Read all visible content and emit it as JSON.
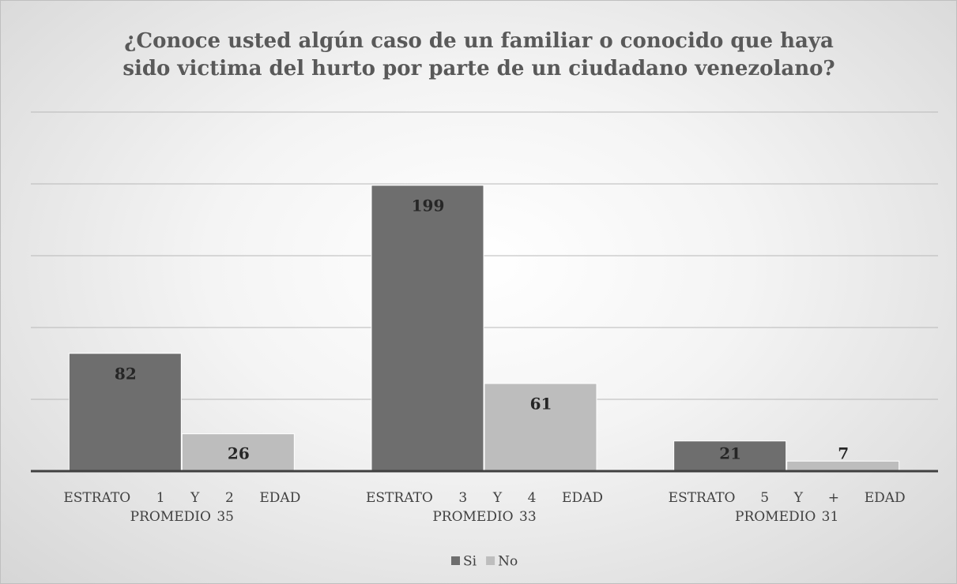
{
  "chart_data": {
    "type": "bar",
    "title": "¿Conoce usted algún caso de un familiar o conocido que haya sido victima del hurto por parte de un ciudadano venezolano?",
    "title_lines": [
      "¿Conoce usted algún caso de un familiar o conocido que haya",
      "sido victima del hurto por parte de un ciudadano venezolano?"
    ],
    "categories": [
      "ESTRATO 1 Y 2 EDAD PROMEDIO 35",
      "ESTRATO 3 Y 4 EDAD PROMEDIO 33",
      "ESTRATO 5 Y + EDAD PROMEDIO 31"
    ],
    "series": [
      {
        "name": "Si",
        "color": "#6e6e6e",
        "values": [
          82,
          199,
          21
        ]
      },
      {
        "name": "No",
        "color": "#bdbdbd",
        "values": [
          26,
          61,
          7
        ]
      }
    ],
    "ylim": [
      0,
      250
    ],
    "yticks": [
      0,
      50,
      100,
      150,
      200,
      250
    ],
    "grid": true,
    "legend": "bottom"
  }
}
